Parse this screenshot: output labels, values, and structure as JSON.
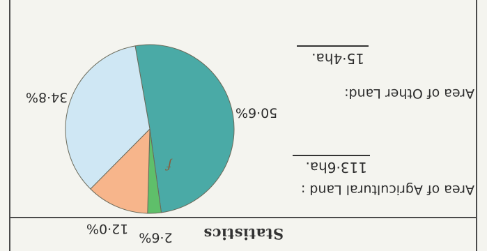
{
  "section_title": "Statistics",
  "stats": {
    "agricultural_label": "Area of Agricultural Land :",
    "agricultural_value": "113·6ha.",
    "other_label": "Area of Other Land:",
    "other_value": "15·4ha."
  },
  "chart_data": {
    "type": "pie",
    "slices": [
      {
        "label": "50·6%",
        "value": 50.6,
        "color": "#4aaaa6"
      },
      {
        "label": "2·6%",
        "value": 2.6,
        "color": "#5fbf6a"
      },
      {
        "label": "12·0%",
        "value": 12.0,
        "color": "#f7b58b"
      },
      {
        "label": "34·8%",
        "value": 34.8,
        "color": "#cfe7f4"
      }
    ],
    "annotation": "f"
  }
}
